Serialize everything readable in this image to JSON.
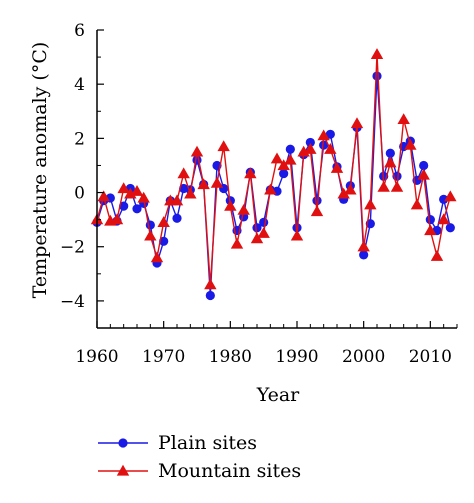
{
  "chart_data": {
    "type": "line",
    "xlabel": "Year",
    "ylabel": "Temperature anomaly (°C)",
    "xlim": [
      1960,
      2014
    ],
    "ylim": [
      -5,
      6
    ],
    "x_ticks": [
      1960,
      1970,
      1980,
      1990,
      2000,
      2010
    ],
    "y_ticks": [
      -4,
      -2,
      0,
      2,
      4,
      6
    ],
    "legend_position": "bottom",
    "grid": false,
    "x": [
      1960,
      1961,
      1962,
      1963,
      1964,
      1965,
      1966,
      1967,
      1968,
      1969,
      1970,
      1971,
      1972,
      1973,
      1974,
      1975,
      1976,
      1977,
      1978,
      1979,
      1980,
      1981,
      1982,
      1983,
      1984,
      1985,
      1986,
      1987,
      1988,
      1989,
      1990,
      1991,
      1992,
      1993,
      1994,
      1995,
      1996,
      1997,
      1998,
      1999,
      2000,
      2001,
      2002,
      2003,
      2004,
      2005,
      2006,
      2007,
      2008,
      2009,
      2010,
      2011,
      2012,
      2013
    ],
    "series": [
      {
        "name": "Plain sites",
        "color": "#1a1ae6",
        "marker": "circle",
        "values": [
          -1.1,
          -0.3,
          -0.2,
          -1.05,
          -0.5,
          0.15,
          -0.6,
          -0.4,
          -1.2,
          -2.6,
          -1.8,
          -0.3,
          -0.95,
          0.15,
          0.1,
          1.2,
          0.3,
          -3.8,
          1.0,
          0.15,
          -0.3,
          -1.4,
          -0.9,
          0.75,
          -1.3,
          -1.1,
          0.1,
          0.05,
          0.7,
          1.6,
          -1.3,
          1.4,
          1.85,
          -0.3,
          1.75,
          2.15,
          0.95,
          -0.25,
          0.25,
          2.4,
          -2.3,
          -1.15,
          4.3,
          0.6,
          1.45,
          0.6,
          1.7,
          1.9,
          0.45,
          1.0,
          -1.0,
          -1.4,
          -0.25,
          -1.3
        ]
      },
      {
        "name": "Mountain sites",
        "color": "#e01010",
        "marker": "triangle",
        "values": [
          -1.0,
          -0.15,
          -1.05,
          -1.0,
          0.15,
          -0.05,
          0.05,
          -0.2,
          -1.6,
          -2.4,
          -1.1,
          -0.3,
          -0.3,
          0.7,
          -0.05,
          1.5,
          0.3,
          -3.4,
          0.35,
          1.7,
          -0.5,
          -1.9,
          -0.65,
          0.7,
          -1.7,
          -1.5,
          0.1,
          1.25,
          1.0,
          1.2,
          -1.6,
          1.5,
          1.6,
          -0.7,
          2.1,
          1.6,
          0.9,
          -0.05,
          0.1,
          2.55,
          -2.0,
          -0.45,
          5.1,
          0.2,
          1.1,
          0.2,
          2.7,
          1.75,
          -0.45,
          0.65,
          -1.4,
          -2.35,
          -1.0,
          -0.15
        ]
      }
    ]
  }
}
